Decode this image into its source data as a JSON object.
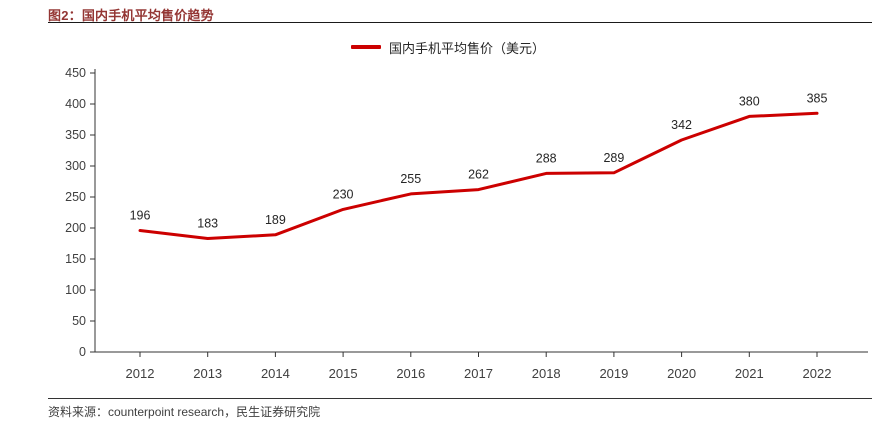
{
  "header": {
    "title": "图2：国内手机平均售价趋势"
  },
  "footer": {
    "source": "资料来源：counterpoint research，民生证券研究院"
  },
  "colors": {
    "title": "#943634",
    "line": "#cc0000",
    "axis": "#333333",
    "tick_label": "#404040",
    "data_label": "#262626"
  },
  "chart_data": {
    "type": "line",
    "title": "图2：国内手机平均售价趋势",
    "legend": "国内手机平均售价（美元）",
    "legend_position": "top-center",
    "categories": [
      "2012",
      "2013",
      "2014",
      "2015",
      "2016",
      "2017",
      "2018",
      "2019",
      "2020",
      "2021",
      "2022"
    ],
    "values": [
      196,
      183,
      189,
      230,
      255,
      262,
      288,
      289,
      342,
      380,
      385
    ],
    "xlabel": "",
    "ylabel": "",
    "ylim": [
      0,
      450
    ],
    "ytick_step": 50,
    "grid": false,
    "data_labels": true
  }
}
